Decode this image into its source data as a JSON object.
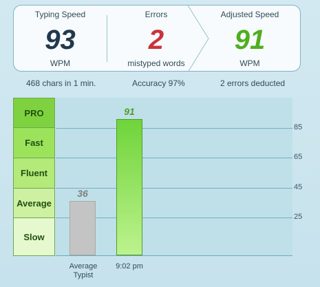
{
  "summary": {
    "typing_speed": {
      "title": "Typing Speed",
      "value": "93",
      "unit": "WPM"
    },
    "errors": {
      "title": "Errors",
      "value": "2",
      "unit": "mistyped words"
    },
    "adjusted_speed": {
      "title": "Adjusted Speed",
      "value": "91",
      "unit": "WPM"
    }
  },
  "stats": {
    "chars": "468 chars in 1 min.",
    "accuracy": "Accuracy 97%",
    "deducted": "2 errors deducted"
  },
  "levels": [
    "PRO",
    "Fast",
    "Fluent",
    "Average",
    "Slow"
  ],
  "colors": {
    "typing_speed": "#22384d",
    "errors": "#c9343b",
    "adjusted_speed": "#4fae1f",
    "avg_bar": "#c4c4c4",
    "user_bar": "#8de049"
  },
  "chart_data": {
    "type": "bar",
    "categories": [
      "Average\nTypist",
      "9:02 pm"
    ],
    "values": [
      36,
      91
    ],
    "data_labels": [
      "36",
      "91"
    ],
    "yticks": [
      "85",
      "65",
      "45",
      "25"
    ],
    "ylim": [
      0,
      100
    ]
  }
}
